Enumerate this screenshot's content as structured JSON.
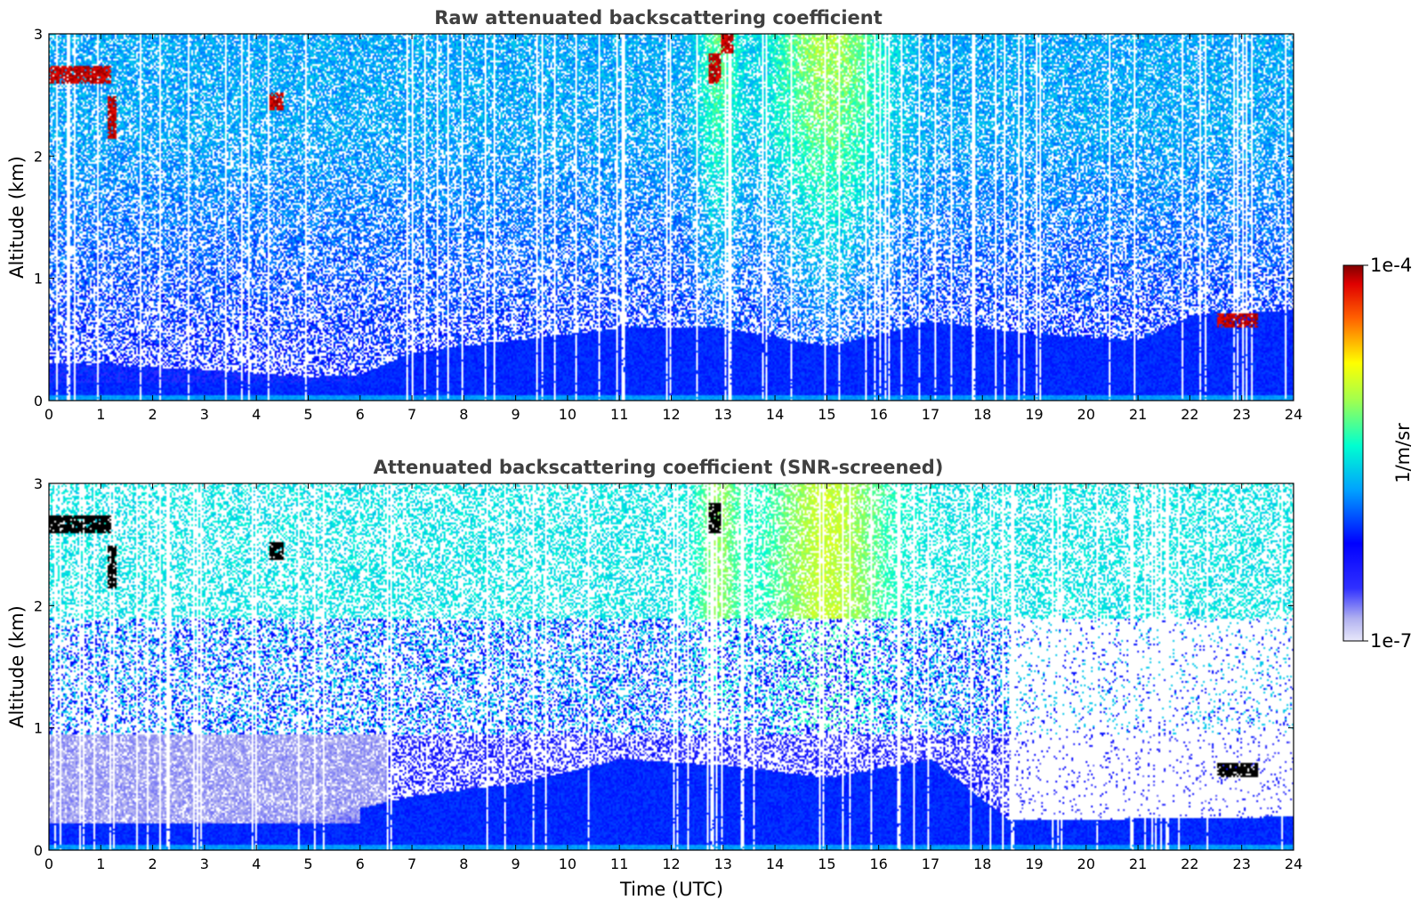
{
  "chart_data": [
    {
      "type": "heatmap",
      "title": "Raw attenuated backscattering coefficient",
      "xlabel": "",
      "ylabel": "Altitude (km)",
      "xlim": [
        0,
        24
      ],
      "ylim": [
        0,
        3
      ],
      "xticks": [
        "0",
        "1",
        "2",
        "3",
        "4",
        "5",
        "6",
        "7",
        "8",
        "9",
        "10",
        "11",
        "12",
        "13",
        "14",
        "15",
        "16",
        "17",
        "18",
        "19",
        "20",
        "21",
        "22",
        "23",
        "24"
      ],
      "yticks": [
        "0",
        "1",
        "2",
        "3"
      ],
      "screened": false,
      "aerosol_layer_top_km": [
        [
          0,
          0.32
        ],
        [
          3,
          0.26
        ],
        [
          5,
          0.2
        ],
        [
          6,
          0.22
        ],
        [
          7,
          0.4
        ],
        [
          9,
          0.5
        ],
        [
          11,
          0.6
        ],
        [
          13,
          0.6
        ],
        [
          15,
          0.45
        ],
        [
          17,
          0.65
        ],
        [
          19,
          0.55
        ],
        [
          21,
          0.5
        ],
        [
          22,
          0.7
        ],
        [
          24,
          0.75
        ]
      ],
      "cloud_patches": [
        {
          "t0": 0.0,
          "t1": 1.2,
          "z0": 2.6,
          "z1": 2.75,
          "value": "1e-4"
        },
        {
          "t0": 1.1,
          "t1": 1.3,
          "z0": 2.15,
          "z1": 2.5,
          "value": "1e-4"
        },
        {
          "t0": 4.25,
          "t1": 4.5,
          "z0": 2.38,
          "z1": 2.52,
          "value": "1e-4"
        },
        {
          "t0": 12.7,
          "t1": 12.95,
          "z0": 2.6,
          "z1": 2.85,
          "value": "1e-4"
        },
        {
          "t0": 12.95,
          "t1": 13.2,
          "z0": 2.85,
          "z1": 3.0,
          "value": "1e-4"
        },
        {
          "t0": 22.5,
          "t1": 23.3,
          "z0": 0.6,
          "z1": 0.72,
          "value": "1e-4"
        }
      ]
    },
    {
      "type": "heatmap",
      "title": "Attenuated backscattering coefficient (SNR-screened)",
      "xlabel": "Time (UTC)",
      "ylabel": "Altitude (km)",
      "xlim": [
        0,
        24
      ],
      "ylim": [
        0,
        3
      ],
      "xticks": [
        "0",
        "1",
        "2",
        "3",
        "4",
        "5",
        "6",
        "7",
        "8",
        "9",
        "10",
        "11",
        "12",
        "13",
        "14",
        "15",
        "16",
        "17",
        "18",
        "19",
        "20",
        "21",
        "22",
        "23",
        "24"
      ],
      "yticks": [
        "0",
        "1",
        "2",
        "3"
      ],
      "screened": true,
      "aerosol_layer_top_km": [
        [
          0,
          0.22
        ],
        [
          3,
          0.22
        ],
        [
          5,
          0.25
        ],
        [
          7,
          0.45
        ],
        [
          9,
          0.55
        ],
        [
          11,
          0.75
        ],
        [
          13,
          0.7
        ],
        [
          15,
          0.6
        ],
        [
          17,
          0.75
        ],
        [
          18.5,
          0.25
        ],
        [
          24,
          0.28
        ]
      ],
      "cloud_patches": [
        {
          "t0": 0.0,
          "t1": 1.2,
          "z0": 2.6,
          "z1": 2.75,
          "value": "saturated"
        },
        {
          "t0": 1.1,
          "t1": 1.3,
          "z0": 2.15,
          "z1": 2.5,
          "value": "saturated"
        },
        {
          "t0": 4.25,
          "t1": 4.5,
          "z0": 2.38,
          "z1": 2.52,
          "value": "saturated"
        },
        {
          "t0": 12.7,
          "t1": 12.95,
          "z0": 2.6,
          "z1": 2.85,
          "value": "saturated"
        },
        {
          "t0": 22.5,
          "t1": 23.3,
          "z0": 0.6,
          "z1": 0.72,
          "value": "saturated"
        }
      ]
    }
  ],
  "colorbar": {
    "label": "1/m/sr",
    "max_label": "1e-4",
    "min_label": "1e-7",
    "scale": "log",
    "colormap": "jet",
    "stops": [
      "#e8e8fa",
      "#0000ff",
      "#00aaff",
      "#00ffcc",
      "#ffff00",
      "#ff8000",
      "#ff0000",
      "#800000"
    ]
  }
}
